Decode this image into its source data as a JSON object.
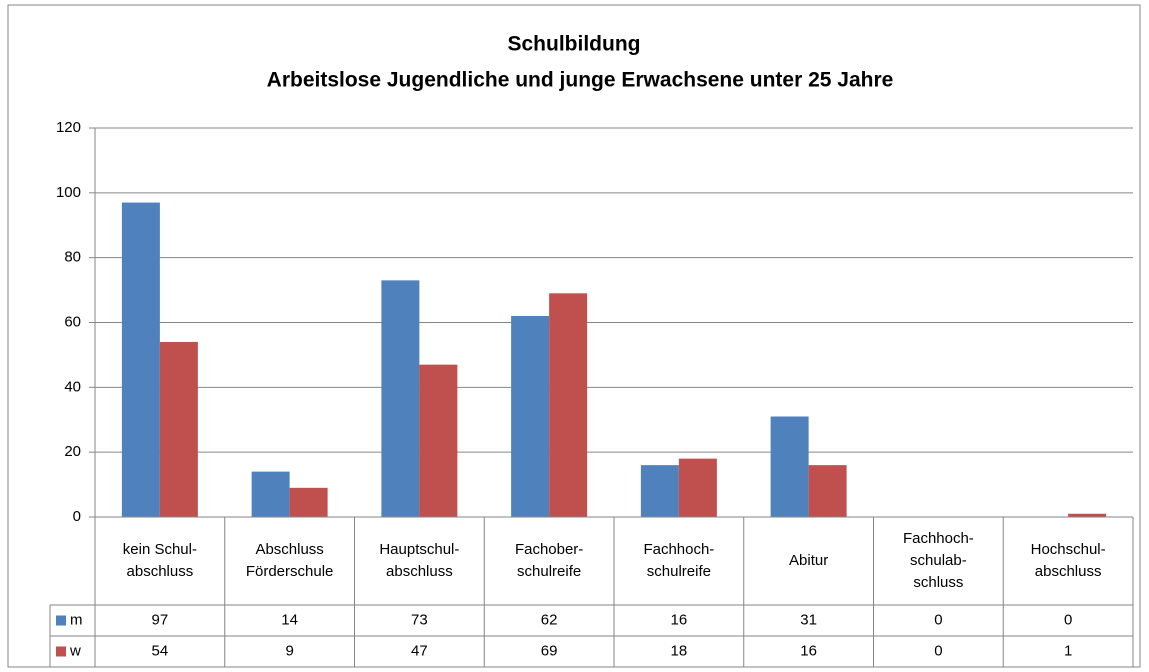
{
  "chart_data": {
    "type": "bar",
    "title": "Schulbildung",
    "subtitle": "Arbeitslose Jugendliche und junge Erwachsene unter 25 Jahre",
    "categories": [
      [
        "kein Schul-",
        "abschluss"
      ],
      [
        "Abschluss",
        "Förderschule"
      ],
      [
        "Hauptschul-",
        "abschluss"
      ],
      [
        "Fachober-",
        "schulreife"
      ],
      [
        "Fachhoch-",
        "schulreife"
      ],
      [
        "Abitur"
      ],
      [
        "Fachhoch-",
        "schulab-",
        "schluss"
      ],
      [
        "Hochschul-",
        "abschluss"
      ]
    ],
    "series": [
      {
        "name": "m",
        "color": "#4f81bd",
        "values": [
          97,
          14,
          73,
          62,
          16,
          31,
          0,
          0
        ]
      },
      {
        "name": "w",
        "color": "#c0504d",
        "values": [
          54,
          9,
          47,
          69,
          18,
          16,
          0,
          1
        ]
      }
    ],
    "ylim": [
      0,
      120
    ],
    "yticks": [
      0,
      20,
      40,
      60,
      80,
      100,
      120
    ],
    "grid": true
  }
}
